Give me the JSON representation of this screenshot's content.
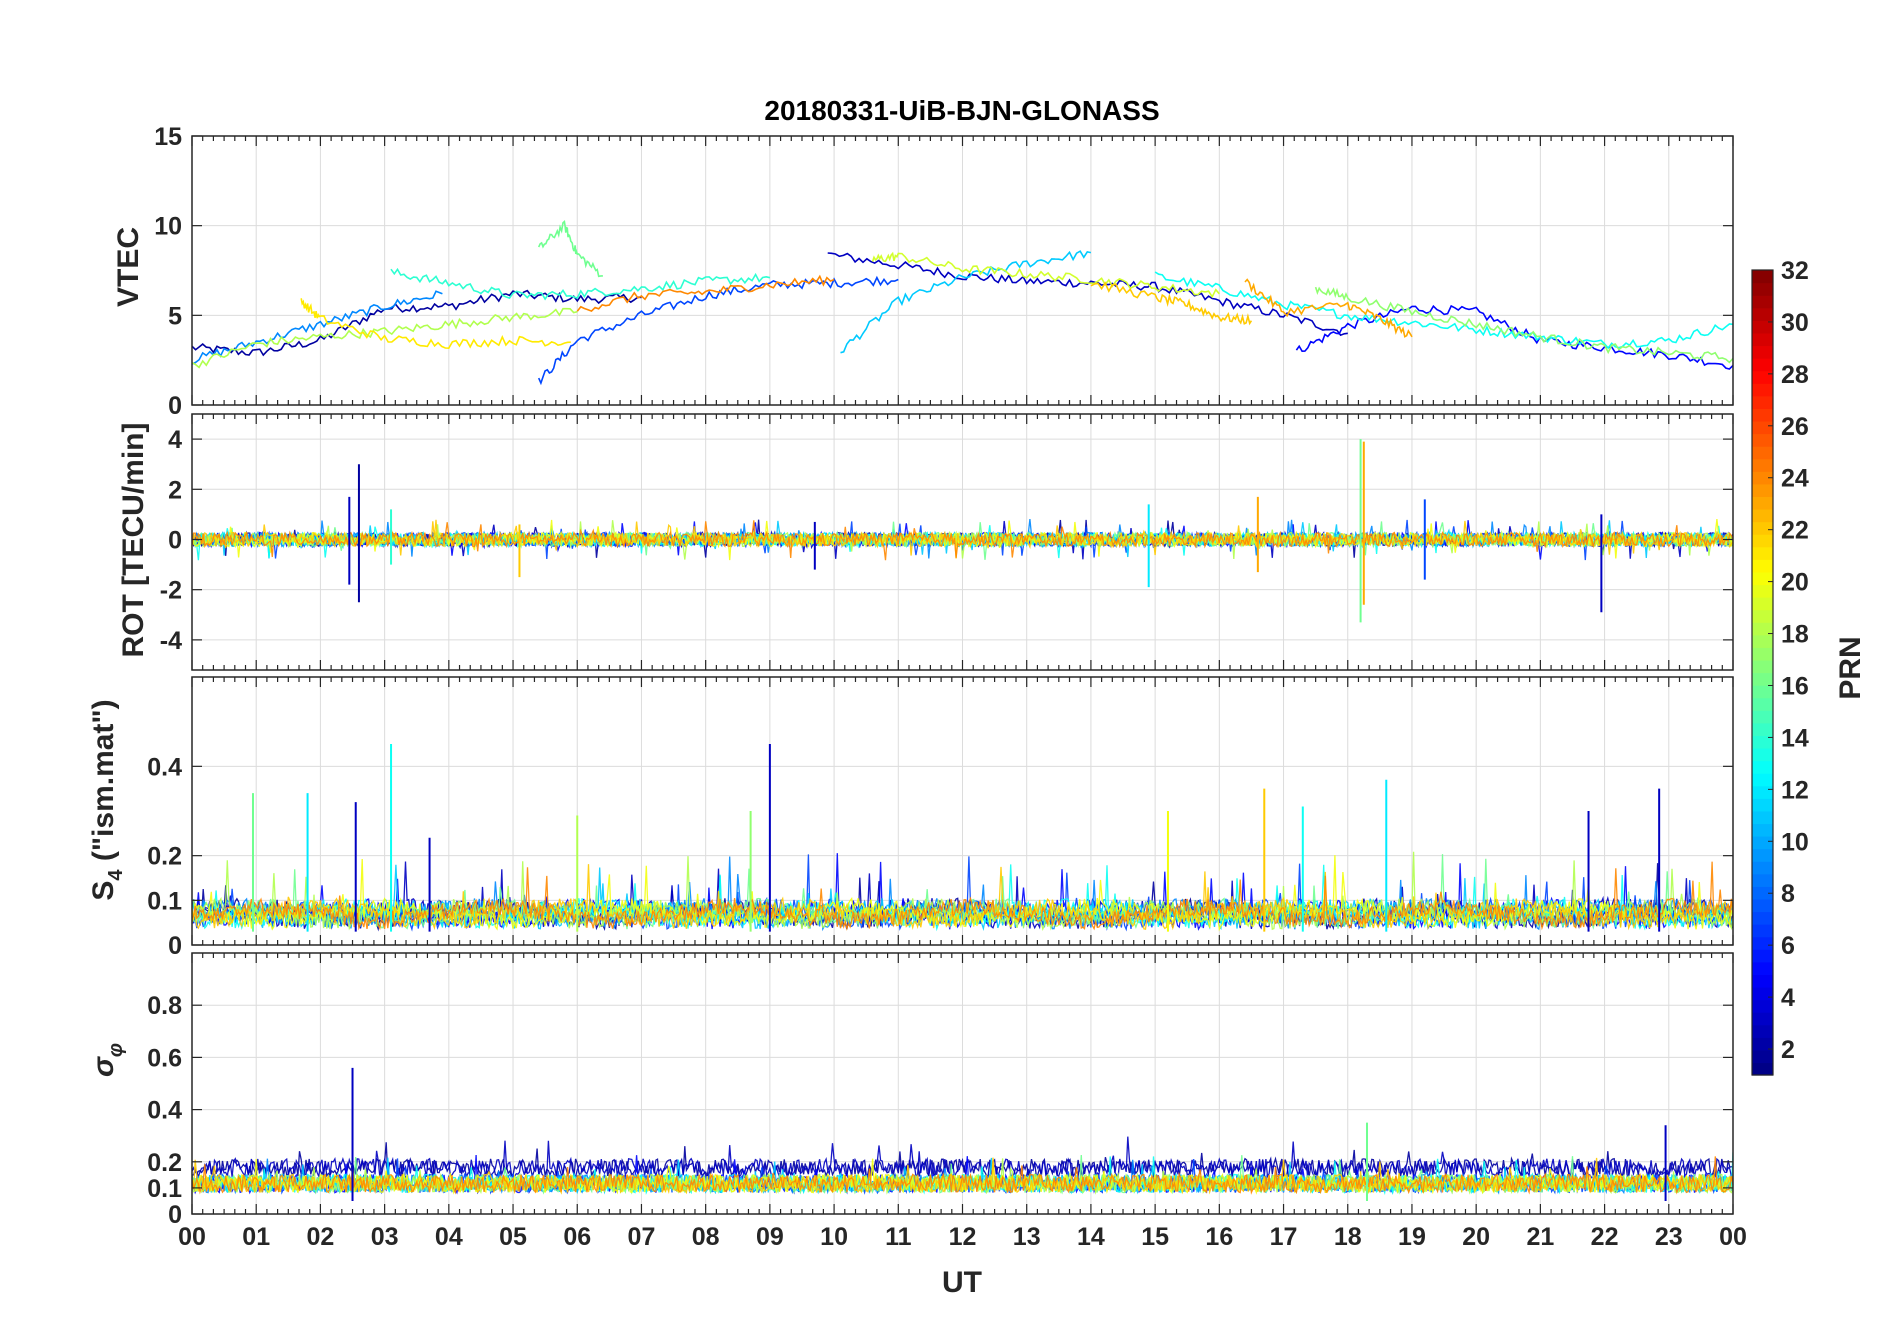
{
  "chart_data": {
    "type": "line",
    "title": "20180331-UiB-BJN-GLONASS",
    "xlabel": "UT",
    "x_tick_labels": [
      "00",
      "01",
      "02",
      "03",
      "04",
      "05",
      "06",
      "07",
      "08",
      "09",
      "10",
      "11",
      "12",
      "13",
      "14",
      "15",
      "16",
      "17",
      "18",
      "19",
      "20",
      "21",
      "22",
      "23",
      "00"
    ],
    "xlim": [
      0,
      24
    ],
    "grid": true,
    "colorbar": {
      "label": "PRN",
      "range": [
        1,
        32
      ],
      "colormap": "jet",
      "tick_values": [
        2,
        4,
        6,
        8,
        10,
        12,
        14,
        16,
        18,
        20,
        22,
        24,
        26,
        28,
        30,
        32
      ],
      "tick_labels": [
        "2",
        "4",
        "6",
        "8",
        "10",
        "12",
        "14",
        "16",
        "18",
        "20",
        "22",
        "24",
        "26",
        "28",
        "30",
        "32"
      ],
      "position": "right"
    },
    "panels": [
      {
        "id": "vtec",
        "ylabel": "VTEC",
        "ylim": [
          0,
          15
        ],
        "y_tick_values": [
          0,
          5,
          10,
          15
        ],
        "y_tick_labels": [
          "0",
          "5",
          "10",
          "15"
        ],
        "series": [
          {
            "prn": 2,
            "x": [
              0.0,
              1.0,
              2.0,
              3.0,
              4.0,
              5.0,
              6.0,
              7.0
            ],
            "y": [
              3.2,
              2.9,
              3.6,
              5.4,
              5.5,
              6.2,
              5.9,
              6.0
            ]
          },
          {
            "prn": 3,
            "x": [
              9.9,
              11.0,
              12.0,
              13.0,
              14.0,
              15.0,
              16.0,
              17.0,
              18.0
            ],
            "y": [
              8.4,
              7.8,
              7.2,
              6.9,
              6.8,
              6.6,
              5.8,
              5.0,
              4.0
            ]
          },
          {
            "prn": 5,
            "x": [
              17.2,
              18.0,
              19.0,
              20.0,
              21.0,
              22.0,
              23.0,
              24.0
            ],
            "y": [
              3.0,
              4.4,
              5.4,
              5.2,
              3.6,
              3.2,
              2.8,
              2.2
            ]
          },
          {
            "prn": 7,
            "x": [
              5.4,
              6.0,
              7.0,
              8.0,
              9.0,
              10.0,
              11.0
            ],
            "y": [
              1.3,
              3.6,
              5.0,
              6.1,
              6.7,
              6.8,
              7.0
            ]
          },
          {
            "prn": 9,
            "x": [
              0.0,
              1.0,
              2.0,
              3.0,
              3.9
            ],
            "y": [
              2.5,
              3.5,
              4.5,
              5.5,
              6.2
            ]
          },
          {
            "prn": 11,
            "x": [
              10.1,
              11.0,
              12.0,
              13.0,
              14.0
            ],
            "y": [
              3.0,
              5.8,
              7.1,
              7.9,
              8.5
            ]
          },
          {
            "prn": 13,
            "x": [
              15.0,
              16.0,
              17.0,
              18.0,
              19.0,
              20.0,
              21.0,
              22.0,
              23.0,
              24.0
            ],
            "y": [
              7.2,
              6.5,
              5.6,
              5.0,
              4.6,
              4.2,
              3.8,
              3.4,
              3.6,
              4.5
            ]
          },
          {
            "prn": 14,
            "x": [
              3.1,
              4.0,
              5.0,
              6.0,
              7.0,
              8.0,
              9.0
            ],
            "y": [
              7.4,
              6.8,
              6.1,
              6.2,
              6.5,
              6.9,
              7.1
            ]
          },
          {
            "prn": 16,
            "x": [
              5.4,
              5.8,
              6.0,
              6.4
            ],
            "y": [
              8.7,
              10.0,
              8.4,
              7.2
            ]
          },
          {
            "prn": 18,
            "x": [
              0.0,
              1.0,
              2.0,
              3.0,
              4.0,
              5.0,
              6.0
            ],
            "y": [
              2.2,
              3.4,
              3.8,
              4.1,
              4.5,
              4.9,
              5.2
            ]
          },
          {
            "prn": 19,
            "x": [
              10.6,
              11.0,
              12.0,
              13.0,
              14.0,
              15.0,
              16.0
            ],
            "y": [
              8.1,
              8.3,
              7.6,
              7.3,
              7.0,
              6.6,
              6.2
            ]
          },
          {
            "prn": 21,
            "x": [
              1.7,
              2.0,
              3.0,
              4.0,
              5.0,
              5.9
            ],
            "y": [
              5.8,
              4.8,
              3.7,
              3.4,
              3.6,
              3.5
            ]
          },
          {
            "prn": 22,
            "x": [
              14.0,
              15.0,
              15.5,
              16.0,
              16.5
            ],
            "y": [
              6.8,
              6.0,
              5.6,
              4.9,
              4.7
            ]
          },
          {
            "prn": 23,
            "x": [
              16.4,
              17.0,
              18.0,
              18.5,
              19.0
            ],
            "y": [
              6.9,
              5.2,
              5.6,
              4.8,
              3.8
            ]
          },
          {
            "prn": 24,
            "x": [
              6.0,
              7.0,
              8.0,
              9.0,
              10.0
            ],
            "y": [
              5.3,
              6.1,
              6.3,
              6.7,
              7.0
            ]
          },
          {
            "prn": 17,
            "x": [
              17.5,
              18.0,
              19.0,
              20.0,
              21.0,
              22.0,
              23.0,
              24.0
            ],
            "y": [
              6.5,
              6.0,
              5.2,
              4.5,
              3.8,
              3.2,
              2.9,
              2.6
            ]
          }
        ]
      },
      {
        "id": "rot",
        "ylabel": "ROT [TECU/min]",
        "ylim": [
          -5.2,
          5
        ],
        "y_tick_values": [
          -4,
          -2,
          0,
          2,
          4
        ],
        "y_tick_labels": [
          "-4",
          "-2",
          "0",
          "2",
          "4"
        ],
        "spikes": [
          {
            "prn": 2,
            "x": 2.6,
            "y": [
              -2.5,
              3.0
            ]
          },
          {
            "prn": 3,
            "x": 2.45,
            "y": [
              -1.8,
              1.7
            ]
          },
          {
            "prn": 14,
            "x": 3.1,
            "y": [
              -1.0,
              1.2
            ]
          },
          {
            "prn": 22,
            "x": 5.1,
            "y": [
              -1.5,
              0.6
            ]
          },
          {
            "prn": 3,
            "x": 9.7,
            "y": [
              -1.2,
              0.7
            ]
          },
          {
            "prn": 12,
            "x": 14.9,
            "y": [
              -1.9,
              1.4
            ]
          },
          {
            "prn": 23,
            "x": 16.6,
            "y": [
              -1.3,
              1.7
            ]
          },
          {
            "prn": 23,
            "x": 18.25,
            "y": [
              -2.6,
              3.9
            ]
          },
          {
            "prn": 16,
            "x": 18.2,
            "y": [
              -3.3,
              4.0
            ]
          },
          {
            "prn": 7,
            "x": 19.2,
            "y": [
              -1.6,
              1.6
            ]
          },
          {
            "prn": 3,
            "x": 21.95,
            "y": [
              -2.9,
              1.0
            ]
          }
        ]
      },
      {
        "id": "s4",
        "ylabel": "S4 (\"ism.mat\")",
        "ylabel_main": "S",
        "ylabel_sub": "4",
        "ylabel_rest": " (\"ism.mat\")",
        "ylim": [
          0,
          0.6
        ],
        "y_tick_values": [
          0,
          0.1,
          0.2,
          0.4
        ],
        "y_tick_labels": [
          "0",
          "0.1",
          "0.2",
          "0.4"
        ],
        "spikes": [
          {
            "prn": 16,
            "x": 0.95,
            "y": 0.34
          },
          {
            "prn": 12,
            "x": 1.8,
            "y": 0.34
          },
          {
            "prn": 3,
            "x": 2.55,
            "y": 0.32
          },
          {
            "prn": 13,
            "x": 3.1,
            "y": 0.45
          },
          {
            "prn": 3,
            "x": 3.7,
            "y": 0.24
          },
          {
            "prn": 18,
            "x": 6.0,
            "y": 0.29
          },
          {
            "prn": 3,
            "x": 9.0,
            "y": 0.45
          },
          {
            "prn": 17,
            "x": 8.7,
            "y": 0.3
          },
          {
            "prn": 20,
            "x": 15.2,
            "y": 0.3
          },
          {
            "prn": 22,
            "x": 16.7,
            "y": 0.35
          },
          {
            "prn": 13,
            "x": 17.3,
            "y": 0.31
          },
          {
            "prn": 12,
            "x": 18.6,
            "y": 0.37
          },
          {
            "prn": 3,
            "x": 21.75,
            "y": 0.3
          },
          {
            "prn": 3,
            "x": 22.85,
            "y": 0.35
          }
        ]
      },
      {
        "id": "sigma_phi",
        "ylabel": "σ_φ",
        "ylabel_main": "σ",
        "ylabel_sub": "φ",
        "ylim": [
          0,
          1
        ],
        "y_tick_values": [
          0,
          0.1,
          0.2,
          0.4,
          0.6,
          0.8
        ],
        "y_tick_labels": [
          "0",
          "0.1",
          "0.2",
          "0.4",
          "0.6",
          "0.8"
        ],
        "spikes": [
          {
            "prn": 3,
            "x": 2.5,
            "y": 0.56
          },
          {
            "prn": 16,
            "x": 18.3,
            "y": 0.35
          },
          {
            "prn": 3,
            "x": 22.95,
            "y": 0.34
          }
        ]
      }
    ]
  }
}
